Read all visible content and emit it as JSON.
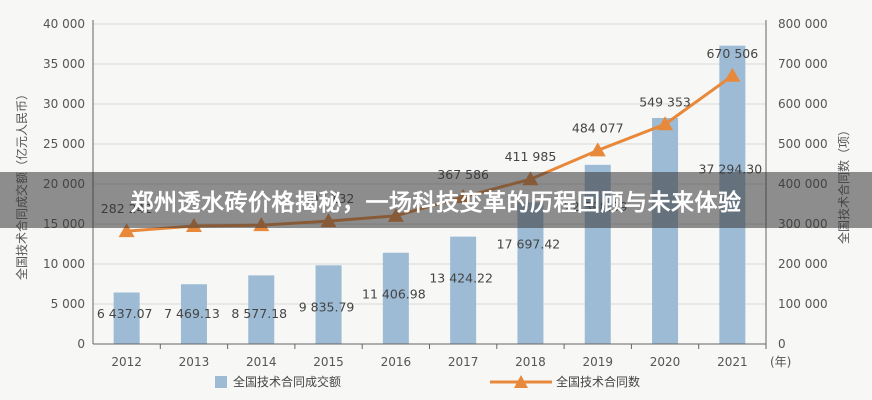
{
  "banner": {
    "title": "郑州透水砖价格揭秘，一场科技变革的历程回顾与未来体验"
  },
  "chart_data": {
    "type": "bar",
    "categories": [
      "2012",
      "2013",
      "2014",
      "2015",
      "2016",
      "2017",
      "2018",
      "2019",
      "2020",
      "2021"
    ],
    "x_unit": "(年)",
    "series": [
      {
        "name": "全国技术合同成交额",
        "kind": "bar",
        "axis": "left",
        "values": [
          6437.07,
          7469.13,
          8577.18,
          9835.79,
          11406.98,
          13424.22,
          17697.42,
          22398.39,
          28251.51,
          37294.3
        ],
        "labels": [
          "6 437.07",
          "7 469.13",
          "8 577.18",
          "9 835.79",
          "11 406.98",
          "13 424.22",
          "17 697.42",
          "22 398.39",
          "",
          "37 294.30"
        ]
      },
      {
        "name": "全国技术合同数",
        "kind": "line",
        "axis": "right",
        "values": [
          282242,
          294929,
          297037,
          307132,
          320437,
          367586,
          411985,
          484077,
          549353,
          670506
        ],
        "labels": [
          "282 242",
          "",
          "",
          "307 132",
          "",
          "367 586",
          "411 985",
          "484 077",
          "549 353",
          "670 506"
        ]
      }
    ],
    "y_left": {
      "label": "全国技术合同成交额（亿元人民币）",
      "range": [
        0,
        40000
      ],
      "ticks": [
        "0",
        "5 000",
        "10 000",
        "15 000",
        "20 000",
        "25 000",
        "30 000",
        "35 000",
        "40 000"
      ]
    },
    "y_right": {
      "label": "全国技术合同数（项）",
      "range": [
        0,
        800000
      ],
      "ticks": [
        "0",
        "100 000",
        "200 000",
        "300 000",
        "400 000",
        "500 000",
        "600 000",
        "700 000",
        "800 000"
      ]
    },
    "legend_position": "bottom",
    "colors": {
      "bar": "#9dbbd4",
      "line": "#e8883a",
      "axis": "#666666"
    }
  }
}
